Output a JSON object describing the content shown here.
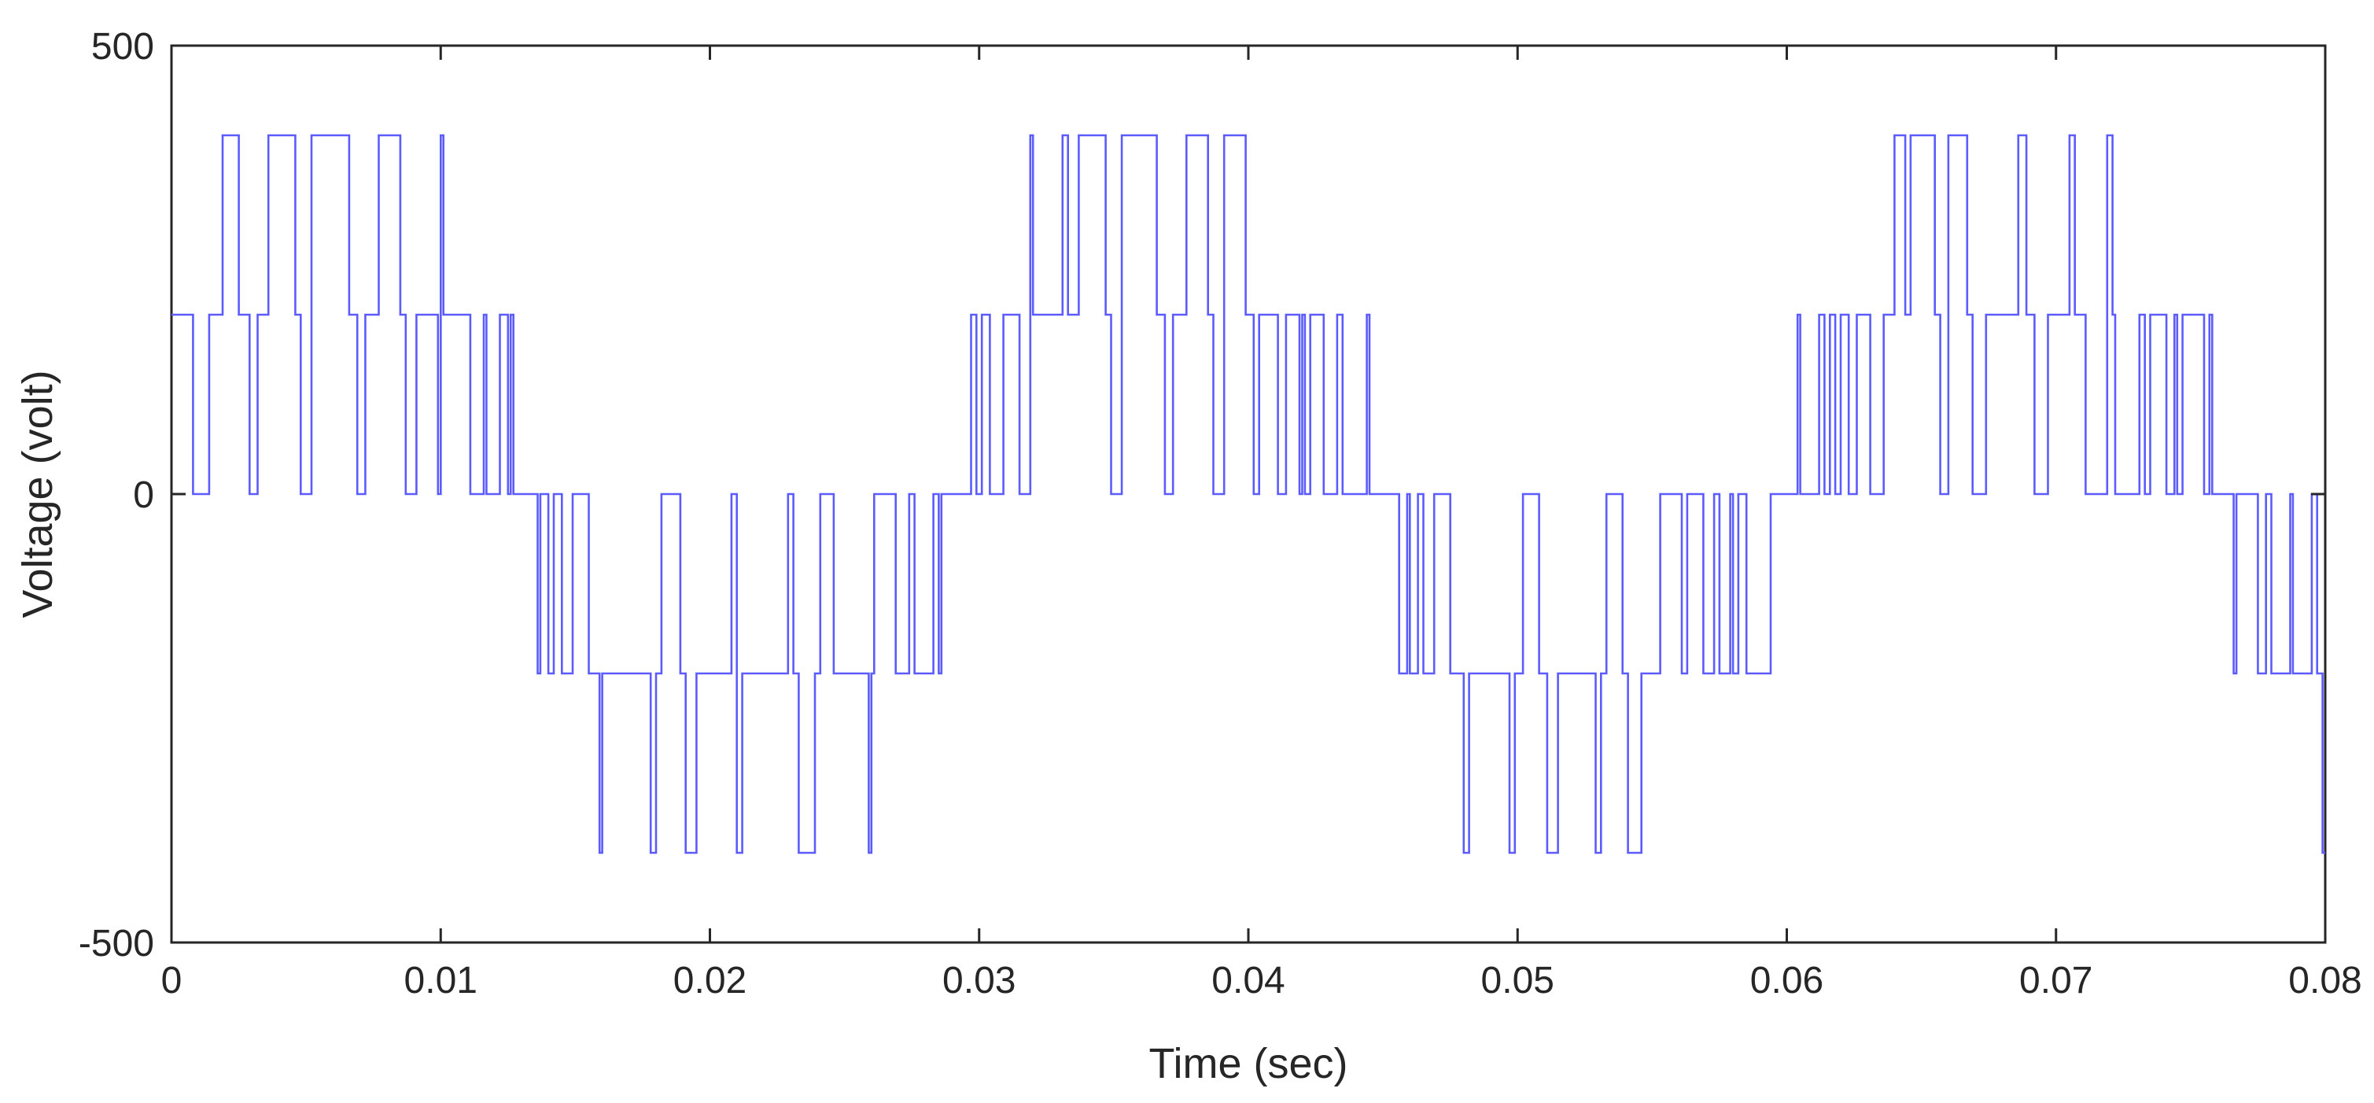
{
  "chart_data": {
    "type": "line",
    "title": "",
    "xlabel": "Time (sec)",
    "ylabel": "Voltage (volt)",
    "xlim": [
      0,
      0.08
    ],
    "ylim": [
      -500,
      500
    ],
    "x_ticks": [
      0,
      0.01,
      0.02,
      0.03,
      0.04,
      0.05,
      0.06,
      0.07,
      0.08
    ],
    "x_tick_labels": [
      "0",
      "0.01",
      "0.02",
      "0.03",
      "0.04",
      "0.05",
      "0.06",
      "0.07",
      "0.08"
    ],
    "y_ticks": [
      -500,
      0,
      500
    ],
    "y_tick_labels": [
      "-500",
      "0",
      "500"
    ],
    "grid": false,
    "line_color": "#5b5bff",
    "axis_color": "#262626",
    "series": [
      {
        "step": true,
        "x": [
          0,
          0.0008,
          0.0014,
          0.0019,
          0.0025,
          0.0029,
          0.0032,
          0.0036,
          0.0046,
          0.0048,
          0.0052,
          0.0066,
          0.0069,
          0.0072,
          0.0077,
          0.0085,
          0.0087,
          0.0091,
          0.0099,
          0.01,
          0.0101,
          0.0111,
          0.0116,
          0.0117,
          0.0122,
          0.0125,
          0.0126,
          0.0127,
          0.0136,
          0.0137,
          0.014,
          0.0142,
          0.0145,
          0.0149,
          0.0155,
          0.0159,
          0.016,
          0.0161,
          0.0178,
          0.018,
          0.0182,
          0.0189,
          0.0191,
          0.0195,
          0.0208,
          0.021,
          0.0212,
          0.0229,
          0.0231,
          0.0233,
          0.0239,
          0.0241,
          0.0246,
          0.0259,
          0.026,
          0.0261,
          0.0269,
          0.0274,
          0.0276,
          0.0283,
          0.0285,
          0.0286,
          0.0296,
          0.0297,
          0.0299,
          0.0301,
          0.0304,
          0.0309,
          0.0315,
          0.0319,
          0.032,
          0.0322,
          0.0331,
          0.0333,
          0.0337,
          0.0347,
          0.0349,
          0.0353,
          0.0366,
          0.0369,
          0.0372,
          0.0377,
          0.0385,
          0.0387,
          0.0391,
          0.0399,
          0.0402,
          0.0404,
          0.0411,
          0.0414,
          0.0419,
          0.042,
          0.0421,
          0.0423,
          0.0428,
          0.0433,
          0.0435,
          0.0444,
          0.0445,
          0.0456,
          0.0459,
          0.046,
          0.0463,
          0.0465,
          0.0469,
          0.0475,
          0.048,
          0.0482,
          0.0485,
          0.0497,
          0.0499,
          0.0502,
          0.0508,
          0.0511,
          0.0515,
          0.0529,
          0.0531,
          0.0533,
          0.0539,
          0.0541,
          0.0546,
          0.0553,
          0.0561,
          0.0563,
          0.0569,
          0.0573,
          0.0575,
          0.0579,
          0.058,
          0.0582,
          0.0585,
          0.0594,
          0.0596,
          0.0604,
          0.0605,
          0.0612,
          0.0614,
          0.0616,
          0.0618,
          0.062,
          0.0623,
          0.0626,
          0.0631,
          0.0636,
          0.064,
          0.0644,
          0.0646,
          0.0655,
          0.0657,
          0.066,
          0.0667,
          0.0669,
          0.0674,
          0.0686,
          0.0689,
          0.0692,
          0.0697,
          0.0705,
          0.0707,
          0.0711,
          0.0719,
          0.0721,
          0.0722,
          0.0731,
          0.0733,
          0.0735,
          0.0741,
          0.0744,
          0.0745,
          0.0747,
          0.0755,
          0.0757,
          0.0758,
          0.0766,
          0.0767,
          0.0775,
          0.0778,
          0.078,
          0.0786,
          0.0787,
          0.0788,
          0.0795,
          0.0797,
          0.0799,
          0.08
        ],
        "y": [
          200,
          0,
          200,
          400,
          200,
          0,
          200,
          400,
          200,
          0,
          400,
          200,
          0,
          200,
          400,
          200,
          0,
          200,
          0,
          400,
          200,
          0,
          200,
          0,
          200,
          0,
          200,
          0,
          -200,
          0,
          -200,
          0,
          -200,
          0,
          -200,
          -400,
          -200,
          -200,
          -400,
          -200,
          0,
          -200,
          -400,
          -200,
          0,
          -400,
          -200,
          0,
          -200,
          -400,
          -200,
          0,
          -200,
          -400,
          -200,
          0,
          -200,
          0,
          -200,
          0,
          -200,
          0,
          0,
          200,
          0,
          200,
          0,
          200,
          0,
          400,
          200,
          200,
          400,
          200,
          400,
          200,
          0,
          400,
          200,
          0,
          200,
          400,
          200,
          0,
          400,
          200,
          0,
          200,
          0,
          200,
          0,
          200,
          0,
          200,
          0,
          200,
          0,
          200,
          0,
          -200,
          0,
          -200,
          0,
          -200,
          0,
          -200,
          -400,
          -200,
          -200,
          -400,
          -200,
          0,
          -200,
          -400,
          -200,
          -400,
          -200,
          0,
          -200,
          -400,
          -200,
          0,
          -200,
          0,
          -200,
          0,
          -200,
          0,
          -200,
          0,
          -200,
          0,
          0,
          200,
          0,
          200,
          0,
          200,
          0,
          200,
          0,
          200,
          0,
          200,
          400,
          200,
          400,
          200,
          0,
          400,
          200,
          0,
          200,
          400,
          200,
          0,
          200,
          400,
          200,
          0,
          400,
          200,
          0,
          200,
          0,
          200,
          0,
          200,
          0,
          200,
          0,
          200,
          0,
          -200,
          0,
          -200,
          0,
          -200,
          -200,
          0,
          -200,
          0,
          -200,
          -400,
          -400
        ]
      }
    ]
  }
}
